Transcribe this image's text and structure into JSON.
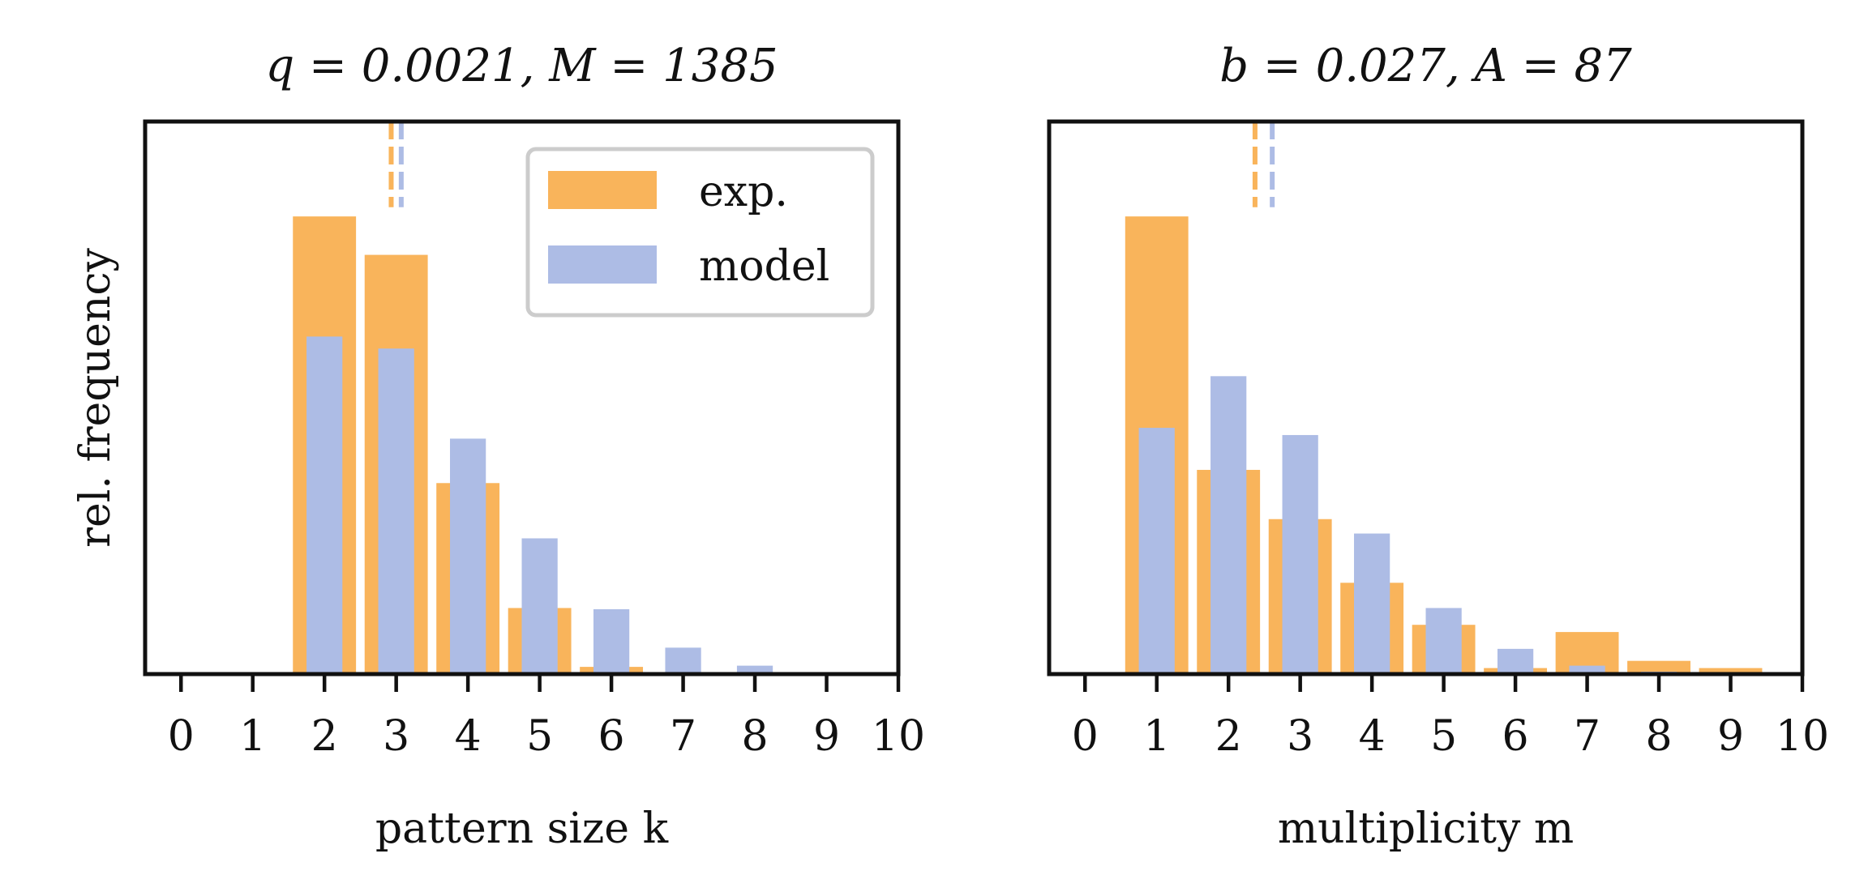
{
  "figure": {
    "ylabel": "rel. frequency",
    "legend": {
      "placement": "top-right of left panel",
      "entries": [
        "exp.",
        "model"
      ]
    },
    "colors": {
      "exp": "#f9b45b",
      "model": "#adbce5",
      "axis": "#111111",
      "legend_border": "#cccccc"
    }
  },
  "chart_data": [
    {
      "type": "bar",
      "title": "q = 0.0021, M = 1385",
      "xlabel": "pattern size k",
      "ylabel": "rel. frequency",
      "x": [
        0,
        1,
        2,
        3,
        4,
        5,
        6,
        7,
        8,
        9,
        10
      ],
      "xticks": [
        "0",
        "1",
        "2",
        "3",
        "4",
        "5",
        "6",
        "7",
        "8",
        "9",
        "10"
      ],
      "xlim": [
        -0.5,
        10
      ],
      "ylim": [
        0,
        0.46
      ],
      "yticks_shown": false,
      "series": [
        {
          "name": "exp.",
          "color": "#f9b45b",
          "x": [
            2,
            3,
            4,
            5,
            6,
            7,
            8,
            9
          ],
          "values": [
            0.381,
            0.349,
            0.159,
            0.055,
            0.006,
            0.0,
            0.0,
            0.001
          ]
        },
        {
          "name": "model",
          "color": "#adbce5",
          "x": [
            2,
            3,
            4,
            5,
            6,
            7,
            8,
            9
          ],
          "values": [
            0.281,
            0.271,
            0.196,
            0.113,
            0.054,
            0.022,
            0.007,
            0.001
          ]
        }
      ],
      "mean_lines": [
        {
          "series": "exp.",
          "x": 2.93,
          "color": "#f9b45b"
        },
        {
          "series": "model",
          "x": 3.07,
          "color": "#adbce5"
        }
      ],
      "grid": false,
      "legend": "top-right"
    },
    {
      "type": "bar",
      "title": "b = 0.027, A = 87",
      "xlabel": "multiplicity m",
      "ylabel": "",
      "x": [
        0,
        1,
        2,
        3,
        4,
        5,
        6,
        7,
        8,
        9,
        10
      ],
      "xticks": [
        "0",
        "1",
        "2",
        "3",
        "4",
        "5",
        "6",
        "7",
        "8",
        "9",
        "10"
      ],
      "xlim": [
        -0.5,
        10
      ],
      "ylim": [
        0,
        0.46
      ],
      "yticks_shown": false,
      "series": [
        {
          "name": "exp.",
          "color": "#f9b45b",
          "x": [
            1,
            2,
            3,
            4,
            5,
            6,
            7,
            8,
            9
          ],
          "values": [
            0.381,
            0.17,
            0.129,
            0.076,
            0.041,
            0.005,
            0.035,
            0.011,
            0.005
          ]
        },
        {
          "name": "model",
          "color": "#adbce5",
          "x": [
            1,
            2,
            3,
            4,
            5,
            6,
            7,
            8,
            9
          ],
          "values": [
            0.205,
            0.248,
            0.199,
            0.117,
            0.055,
            0.021,
            0.007,
            0.002,
            0.0
          ]
        }
      ],
      "mean_lines": [
        {
          "series": "exp.",
          "x": 2.37,
          "color": "#f9b45b"
        },
        {
          "series": "model",
          "x": 2.61,
          "color": "#adbce5"
        }
      ],
      "grid": false,
      "legend": "none"
    }
  ]
}
